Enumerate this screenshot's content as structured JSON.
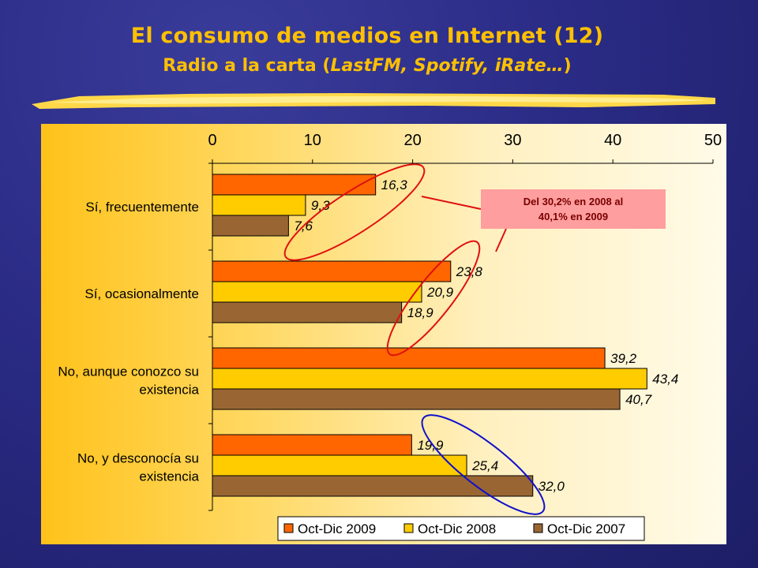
{
  "slide": {
    "title": "El consumo de medios en Internet (12)",
    "subtitle_main": "Radio a la carta (",
    "subtitle_italic": "LastFM, Spotify, iRate…",
    "subtitle_end": ")"
  },
  "callout": {
    "line1": "Del 30,2% en 2008 al",
    "line2": "40,1% en 2009"
  },
  "colors": {
    "series_2009": "#ff6600",
    "series_2008": "#ffcc00",
    "series_2007": "#996633",
    "highlight_red": "#e01010",
    "highlight_blue": "#1010cc",
    "title": "#ffc000"
  },
  "chart_data": {
    "type": "bar",
    "orientation": "horizontal",
    "categories": [
      [
        "Sí, frecuentemente"
      ],
      [
        "Sí, ocasionalmente"
      ],
      [
        "No, aunque conozco su",
        "existencia"
      ],
      [
        "No, y desconocía su",
        "existencia"
      ]
    ],
    "series": [
      {
        "name": "Oct-Dic 2009",
        "values": [
          16.3,
          23.8,
          39.2,
          19.9
        ],
        "labels": [
          "16,3",
          "23,8",
          "39,2",
          "19,9"
        ]
      },
      {
        "name": "Oct-Dic 2008",
        "values": [
          9.3,
          20.9,
          43.4,
          25.4
        ],
        "labels": [
          "9,3",
          "20,9",
          "43,4",
          "25,4"
        ]
      },
      {
        "name": "Oct-Dic 2007",
        "values": [
          7.6,
          18.9,
          40.7,
          32.0
        ],
        "labels": [
          "7,6",
          "18,9",
          "40,7",
          "32,0"
        ]
      }
    ],
    "xlim": [
      0,
      50
    ],
    "xticks": [
      "0",
      "10",
      "20",
      "30",
      "40",
      "50"
    ],
    "xaxis_position": "top",
    "grid": false,
    "legend_position": "bottom"
  }
}
